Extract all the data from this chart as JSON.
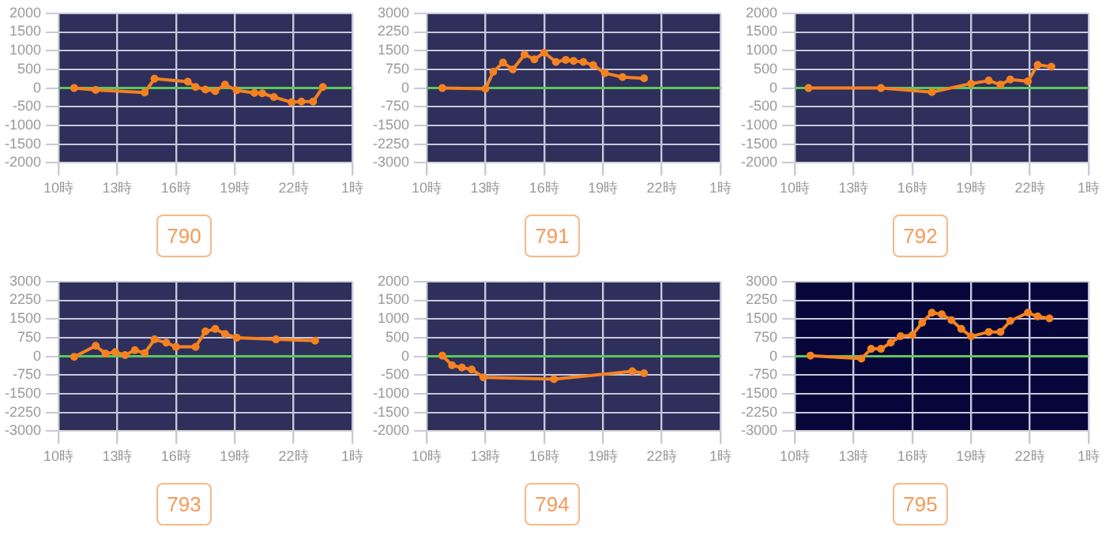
{
  "chart_data": [
    {
      "type": "line",
      "title": "790",
      "x": [
        "--01-01T10:48",
        "--01-01T11:54",
        "--01-01T14:24",
        "--01-01T14:54",
        "--01-01T16:36",
        "--01-01T17:00",
        "--01-01T17:30",
        "--01-01T18:00",
        "--01-01T18:30",
        "--01-01T19:06",
        "--01-01T20:00",
        "--01-01T20:24",
        "--01-01T21:00",
        "--01-01T21:54",
        "--01-01T22:24",
        "--01-01T23:00",
        "--01-01T23:30"
      ],
      "series": [
        {
          "color": "#f58220",
          "values": [
            0,
            -50,
            -120,
            250,
            170,
            30,
            -40,
            -80,
            90,
            -60,
            -130,
            -140,
            -240,
            -380,
            -360,
            -360,
            30
          ]
        }
      ],
      "xlim": [
        "--01-01T10:00",
        "--01-02T01:00"
      ],
      "xticks": [
        {
          "value": "--01-01T10:00",
          "label": "10時"
        },
        {
          "value": "--01-01T13:00",
          "label": "13時"
        },
        {
          "value": "--01-01T16:00",
          "label": "16時"
        },
        {
          "value": "--01-01T19:00",
          "label": "19時"
        },
        {
          "value": "--01-01T22:00",
          "label": "22時"
        },
        {
          "value": "--01-02T01:00",
          "label": "1時"
        }
      ],
      "ylim": [
        -2000,
        2000
      ],
      "yticks": [
        -2000,
        -1500,
        -1000,
        -500,
        0,
        500,
        1000,
        1500,
        2000
      ],
      "ref_lines": [
        {
          "axis": "y",
          "value": 0,
          "color": "#5cc85c"
        }
      ],
      "grid": true,
      "legend": false,
      "marker": "circle"
    },
    {
      "type": "line",
      "title": "791",
      "x": [
        "--01-01T10:48",
        "--01-01T13:00",
        "--01-01T13:24",
        "--01-01T13:54",
        "--01-01T14:24",
        "--01-01T15:00",
        "--01-01T15:30",
        "--01-01T16:00",
        "--01-01T16:36",
        "--01-01T17:06",
        "--01-01T17:30",
        "--01-01T18:00",
        "--01-01T18:30",
        "--01-01T19:06",
        "--01-01T20:00",
        "--01-01T21:06"
      ],
      "series": [
        {
          "color": "#f58220",
          "values": [
            0,
            -30,
            650,
            1020,
            750,
            1350,
            1150,
            1420,
            1050,
            1130,
            1090,
            1050,
            920,
            600,
            440,
            390
          ]
        }
      ],
      "xlim": [
        "--01-01T10:00",
        "--01-02T01:00"
      ],
      "xticks": [
        {
          "value": "--01-01T10:00",
          "label": "10時"
        },
        {
          "value": "--01-01T13:00",
          "label": "13時"
        },
        {
          "value": "--01-01T16:00",
          "label": "16時"
        },
        {
          "value": "--01-01T19:00",
          "label": "19時"
        },
        {
          "value": "--01-01T22:00",
          "label": "22時"
        },
        {
          "value": "--01-02T01:00",
          "label": "1時"
        }
      ],
      "ylim": [
        -3000,
        3000
      ],
      "yticks": [
        -3000,
        -2250,
        -1500,
        -750,
        0,
        750,
        1500,
        2250,
        3000
      ],
      "ref_lines": [
        {
          "axis": "y",
          "value": 0,
          "color": "#5cc85c"
        }
      ],
      "grid": true,
      "legend": false,
      "marker": "circle"
    },
    {
      "type": "line",
      "title": "792",
      "x": [
        "--01-01T10:42",
        "--01-01T14:24",
        "--01-01T17:00",
        "--01-01T19:00",
        "--01-01T19:54",
        "--01-01T20:30",
        "--01-01T21:00",
        "--01-01T21:54",
        "--01-01T22:24",
        "--01-01T23:06"
      ],
      "series": [
        {
          "color": "#f58220",
          "values": [
            0,
            0,
            -110,
            120,
            200,
            90,
            230,
            180,
            620,
            570
          ]
        }
      ],
      "xlim": [
        "--01-01T10:00",
        "--01-02T01:00"
      ],
      "xticks": [
        {
          "value": "--01-01T10:00",
          "label": "10時"
        },
        {
          "value": "--01-01T13:00",
          "label": "13時"
        },
        {
          "value": "--01-01T16:00",
          "label": "16時"
        },
        {
          "value": "--01-01T19:00",
          "label": "19時"
        },
        {
          "value": "--01-01T22:00",
          "label": "22時"
        },
        {
          "value": "--01-02T01:00",
          "label": "1時"
        }
      ],
      "ylim": [
        -2000,
        2000
      ],
      "yticks": [
        -2000,
        -1500,
        -1000,
        -500,
        0,
        500,
        1000,
        1500,
        2000
      ],
      "ref_lines": [
        {
          "axis": "y",
          "value": 0,
          "color": "#5cc85c"
        }
      ],
      "grid": true,
      "legend": false,
      "marker": "circle"
    },
    {
      "type": "line",
      "title": "793",
      "x": [
        "--01-01T10:48",
        "--01-01T11:54",
        "--01-01T12:24",
        "--01-01T12:54",
        "--01-01T13:24",
        "--01-01T13:54",
        "--01-01T14:24",
        "--01-01T14:54",
        "--01-01T15:30",
        "--01-01T16:00",
        "--01-01T17:00",
        "--01-01T17:30",
        "--01-01T18:00",
        "--01-01T18:30",
        "--01-01T19:06",
        "--01-01T21:06",
        "--01-01T23:06"
      ],
      "series": [
        {
          "color": "#f58220",
          "values": [
            -20,
            420,
            110,
            170,
            50,
            250,
            130,
            680,
            550,
            380,
            380,
            1000,
            1100,
            900,
            750,
            680,
            630
          ]
        }
      ],
      "xlim": [
        "--01-01T10:00",
        "--01-02T01:00"
      ],
      "xticks": [
        {
          "value": "--01-01T10:00",
          "label": "10時"
        },
        {
          "value": "--01-01T13:00",
          "label": "13時"
        },
        {
          "value": "--01-01T16:00",
          "label": "16時"
        },
        {
          "value": "--01-01T19:00",
          "label": "19時"
        },
        {
          "value": "--01-01T22:00",
          "label": "22時"
        },
        {
          "value": "--01-02T01:00",
          "label": "1時"
        }
      ],
      "ylim": [
        -3000,
        3000
      ],
      "yticks": [
        -3000,
        -2250,
        -1500,
        -750,
        0,
        750,
        1500,
        2250,
        3000
      ],
      "ref_lines": [
        {
          "axis": "y",
          "value": 0,
          "color": "#5cc85c"
        }
      ],
      "grid": true,
      "legend": false,
      "marker": "circle"
    },
    {
      "type": "line",
      "title": "794",
      "x": [
        "--01-01T10:48",
        "--01-01T11:18",
        "--01-01T11:48",
        "--01-01T12:18",
        "--01-01T12:54",
        "--01-01T16:30",
        "--01-01T20:30",
        "--01-01T21:06"
      ],
      "series": [
        {
          "color": "#f58220",
          "values": [
            20,
            -240,
            -300,
            -350,
            -560,
            -610,
            -400,
            -450
          ]
        }
      ],
      "xlim": [
        "--01-01T10:00",
        "--01-02T01:00"
      ],
      "xticks": [
        {
          "value": "--01-01T10:00",
          "label": "10時"
        },
        {
          "value": "--01-01T13:00",
          "label": "13時"
        },
        {
          "value": "--01-01T16:00",
          "label": "16時"
        },
        {
          "value": "--01-01T19:00",
          "label": "19時"
        },
        {
          "value": "--01-01T22:00",
          "label": "22時"
        },
        {
          "value": "--01-02T01:00",
          "label": "1時"
        }
      ],
      "ylim": [
        -2000,
        2000
      ],
      "yticks": [
        -2000,
        -1500,
        -1000,
        -500,
        0,
        500,
        1000,
        1500,
        2000
      ],
      "ref_lines": [
        {
          "axis": "y",
          "value": 0,
          "color": "#5cc85c"
        }
      ],
      "grid": true,
      "legend": false,
      "marker": "circle"
    },
    {
      "type": "line",
      "title": "795",
      "x": [
        "--01-01T10:48",
        "--01-01T13:24",
        "--01-01T13:54",
        "--01-01T14:24",
        "--01-01T14:54",
        "--01-01T15:24",
        "--01-01T16:00",
        "--01-01T16:30",
        "--01-01T17:00",
        "--01-01T17:30",
        "--01-01T18:00",
        "--01-01T18:30",
        "--01-01T19:00",
        "--01-01T19:54",
        "--01-01T20:30",
        "--01-01T21:00",
        "--01-01T21:54",
        "--01-01T22:24",
        "--01-01T23:00"
      ],
      "series": [
        {
          "color": "#f58220",
          "values": [
            30,
            -90,
            300,
            300,
            550,
            810,
            850,
            1350,
            1750,
            1690,
            1450,
            1100,
            800,
            980,
            980,
            1420,
            1750,
            1600,
            1520
          ]
        }
      ],
      "xlim": [
        "--01-01T10:00",
        "--01-02T01:00"
      ],
      "xticks": [
        {
          "value": "--01-01T10:00",
          "label": "10時"
        },
        {
          "value": "--01-01T13:00",
          "label": "13時"
        },
        {
          "value": "--01-01T16:00",
          "label": "16時"
        },
        {
          "value": "--01-01T19:00",
          "label": "19時"
        },
        {
          "value": "--01-01T22:00",
          "label": "22時"
        },
        {
          "value": "--01-02T01:00",
          "label": "1時"
        }
      ],
      "ylim": [
        -3000,
        3000
      ],
      "yticks": [
        -3000,
        -2250,
        -1500,
        -750,
        0,
        750,
        1500,
        2250,
        3000
      ],
      "ref_lines": [
        {
          "axis": "y",
          "value": 0,
          "color": "#5cc85c"
        }
      ],
      "grid": true,
      "legend": false,
      "marker": "circle"
    }
  ]
}
